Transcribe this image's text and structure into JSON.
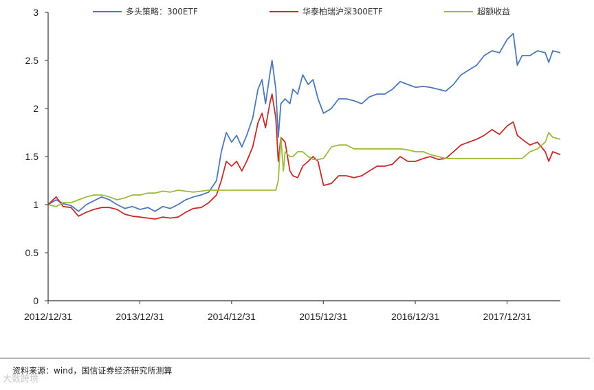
{
  "chart_data": {
    "type": "line",
    "title": "",
    "xlabel": "",
    "ylabel": "",
    "ylim": [
      0,
      3
    ],
    "yticks": [
      0,
      0.5,
      1,
      1.5,
      2,
      2.5,
      3
    ],
    "ytick_labels": [
      "0",
      "0.5",
      "1",
      "1.5",
      "2",
      "2.5",
      "3"
    ],
    "xlim": [
      "2012-12-31",
      "2018-07-31"
    ],
    "xticks": [
      "2012-12-31",
      "2013-12-31",
      "2014-12-31",
      "2015-12-31",
      "2016-12-31",
      "2017-12-31"
    ],
    "xtick_labels": [
      "2012/12/31",
      "2013/12/31",
      "2014/12/31",
      "2015/12/31",
      "2016/12/31",
      "2017/12/31"
    ],
    "grid": false,
    "legend_position": "top",
    "series": [
      {
        "name": "多头策略：300ETF",
        "color": "#4a78b8",
        "points": [
          [
            "2012-12-31",
            1.0
          ],
          [
            "2013-02-01",
            1.05
          ],
          [
            "2013-03-01",
            1.01
          ],
          [
            "2013-04-01",
            0.99
          ],
          [
            "2013-05-01",
            0.93
          ],
          [
            "2013-06-01",
            1.0
          ],
          [
            "2013-07-01",
            1.04
          ],
          [
            "2013-08-01",
            1.08
          ],
          [
            "2013-09-01",
            1.05
          ],
          [
            "2013-10-01",
            1.0
          ],
          [
            "2013-11-01",
            0.96
          ],
          [
            "2013-12-01",
            0.98
          ],
          [
            "2014-01-01",
            0.95
          ],
          [
            "2014-02-01",
            0.97
          ],
          [
            "2014-03-01",
            0.93
          ],
          [
            "2014-04-01",
            0.98
          ],
          [
            "2014-05-01",
            0.96
          ],
          [
            "2014-06-01",
            1.0
          ],
          [
            "2014-07-01",
            1.05
          ],
          [
            "2014-08-01",
            1.08
          ],
          [
            "2014-09-01",
            1.1
          ],
          [
            "2014-10-01",
            1.13
          ],
          [
            "2014-11-01",
            1.25
          ],
          [
            "2014-11-20",
            1.55
          ],
          [
            "2014-12-10",
            1.75
          ],
          [
            "2014-12-31",
            1.65
          ],
          [
            "2015-01-20",
            1.72
          ],
          [
            "2015-02-10",
            1.6
          ],
          [
            "2015-03-01",
            1.72
          ],
          [
            "2015-03-25",
            1.9
          ],
          [
            "2015-04-15",
            2.2
          ],
          [
            "2015-05-01",
            2.3
          ],
          [
            "2015-05-15",
            2.05
          ],
          [
            "2015-06-01",
            2.35
          ],
          [
            "2015-06-10",
            2.5
          ],
          [
            "2015-06-25",
            2.2
          ],
          [
            "2015-07-05",
            1.7
          ],
          [
            "2015-07-15",
            2.05
          ],
          [
            "2015-08-01",
            2.1
          ],
          [
            "2015-08-20",
            2.05
          ],
          [
            "2015-09-01",
            2.2
          ],
          [
            "2015-09-20",
            2.15
          ],
          [
            "2015-10-10",
            2.35
          ],
          [
            "2015-11-01",
            2.25
          ],
          [
            "2015-11-20",
            2.3
          ],
          [
            "2015-12-10",
            2.1
          ],
          [
            "2016-01-01",
            1.95
          ],
          [
            "2016-02-01",
            2.0
          ],
          [
            "2016-03-01",
            2.1
          ],
          [
            "2016-04-01",
            2.1
          ],
          [
            "2016-05-01",
            2.08
          ],
          [
            "2016-06-01",
            2.05
          ],
          [
            "2016-07-01",
            2.12
          ],
          [
            "2016-08-01",
            2.15
          ],
          [
            "2016-09-01",
            2.15
          ],
          [
            "2016-10-01",
            2.2
          ],
          [
            "2016-11-01",
            2.28
          ],
          [
            "2016-12-01",
            2.25
          ],
          [
            "2017-01-01",
            2.22
          ],
          [
            "2017-02-01",
            2.23
          ],
          [
            "2017-03-01",
            2.22
          ],
          [
            "2017-04-01",
            2.2
          ],
          [
            "2017-05-01",
            2.18
          ],
          [
            "2017-06-01",
            2.25
          ],
          [
            "2017-07-01",
            2.35
          ],
          [
            "2017-08-01",
            2.4
          ],
          [
            "2017-09-01",
            2.45
          ],
          [
            "2017-10-01",
            2.55
          ],
          [
            "2017-11-01",
            2.6
          ],
          [
            "2017-12-01",
            2.58
          ],
          [
            "2018-01-01",
            2.72
          ],
          [
            "2018-01-25",
            2.78
          ],
          [
            "2018-02-10",
            2.45
          ],
          [
            "2018-03-01",
            2.55
          ],
          [
            "2018-04-01",
            2.55
          ],
          [
            "2018-05-01",
            2.6
          ],
          [
            "2018-06-01",
            2.58
          ],
          [
            "2018-06-15",
            2.48
          ],
          [
            "2018-07-01",
            2.6
          ],
          [
            "2018-07-31",
            2.58
          ]
        ]
      },
      {
        "name": "华泰柏瑞沪深300ETF",
        "color": "#c62a2a",
        "points": [
          [
            "2012-12-31",
            1.0
          ],
          [
            "2013-02-01",
            1.08
          ],
          [
            "2013-03-01",
            0.98
          ],
          [
            "2013-04-01",
            0.97
          ],
          [
            "2013-05-01",
            0.88
          ],
          [
            "2013-06-01",
            0.92
          ],
          [
            "2013-07-01",
            0.95
          ],
          [
            "2013-08-01",
            0.97
          ],
          [
            "2013-09-01",
            0.97
          ],
          [
            "2013-10-01",
            0.95
          ],
          [
            "2013-11-01",
            0.9
          ],
          [
            "2013-12-01",
            0.88
          ],
          [
            "2014-01-01",
            0.87
          ],
          [
            "2014-02-01",
            0.86
          ],
          [
            "2014-03-01",
            0.85
          ],
          [
            "2014-04-01",
            0.87
          ],
          [
            "2014-05-01",
            0.86
          ],
          [
            "2014-06-01",
            0.87
          ],
          [
            "2014-07-01",
            0.92
          ],
          [
            "2014-08-01",
            0.96
          ],
          [
            "2014-09-01",
            0.97
          ],
          [
            "2014-10-01",
            1.02
          ],
          [
            "2014-11-01",
            1.1
          ],
          [
            "2014-11-20",
            1.25
          ],
          [
            "2014-12-10",
            1.45
          ],
          [
            "2014-12-31",
            1.4
          ],
          [
            "2015-01-20",
            1.45
          ],
          [
            "2015-02-10",
            1.35
          ],
          [
            "2015-03-01",
            1.45
          ],
          [
            "2015-03-25",
            1.6
          ],
          [
            "2015-04-15",
            1.85
          ],
          [
            "2015-05-01",
            1.95
          ],
          [
            "2015-05-15",
            1.8
          ],
          [
            "2015-06-01",
            2.05
          ],
          [
            "2015-06-10",
            2.15
          ],
          [
            "2015-06-25",
            1.9
          ],
          [
            "2015-07-05",
            1.45
          ],
          [
            "2015-07-15",
            1.7
          ],
          [
            "2015-08-01",
            1.65
          ],
          [
            "2015-08-20",
            1.35
          ],
          [
            "2015-09-01",
            1.3
          ],
          [
            "2015-09-20",
            1.28
          ],
          [
            "2015-10-10",
            1.4
          ],
          [
            "2015-11-01",
            1.45
          ],
          [
            "2015-11-20",
            1.5
          ],
          [
            "2015-12-10",
            1.45
          ],
          [
            "2016-01-01",
            1.2
          ],
          [
            "2016-02-01",
            1.22
          ],
          [
            "2016-03-01",
            1.3
          ],
          [
            "2016-04-01",
            1.3
          ],
          [
            "2016-05-01",
            1.28
          ],
          [
            "2016-06-01",
            1.3
          ],
          [
            "2016-07-01",
            1.35
          ],
          [
            "2016-08-01",
            1.4
          ],
          [
            "2016-09-01",
            1.4
          ],
          [
            "2016-10-01",
            1.42
          ],
          [
            "2016-11-01",
            1.5
          ],
          [
            "2016-12-01",
            1.45
          ],
          [
            "2017-01-01",
            1.45
          ],
          [
            "2017-02-01",
            1.48
          ],
          [
            "2017-03-01",
            1.5
          ],
          [
            "2017-04-01",
            1.47
          ],
          [
            "2017-05-01",
            1.48
          ],
          [
            "2017-06-01",
            1.55
          ],
          [
            "2017-07-01",
            1.62
          ],
          [
            "2017-08-01",
            1.65
          ],
          [
            "2017-09-01",
            1.68
          ],
          [
            "2017-10-01",
            1.72
          ],
          [
            "2017-11-01",
            1.78
          ],
          [
            "2017-12-01",
            1.73
          ],
          [
            "2018-01-01",
            1.82
          ],
          [
            "2018-01-25",
            1.86
          ],
          [
            "2018-02-10",
            1.72
          ],
          [
            "2018-03-01",
            1.68
          ],
          [
            "2018-04-01",
            1.62
          ],
          [
            "2018-05-01",
            1.65
          ],
          [
            "2018-06-01",
            1.55
          ],
          [
            "2018-06-15",
            1.45
          ],
          [
            "2018-07-01",
            1.55
          ],
          [
            "2018-07-31",
            1.52
          ]
        ]
      },
      {
        "name": "超额收益",
        "color": "#9cba3a",
        "points": [
          [
            "2012-12-31",
            1.0
          ],
          [
            "2013-02-01",
            0.98
          ],
          [
            "2013-03-01",
            1.02
          ],
          [
            "2013-04-01",
            1.02
          ],
          [
            "2013-05-01",
            1.05
          ],
          [
            "2013-06-01",
            1.08
          ],
          [
            "2013-07-01",
            1.1
          ],
          [
            "2013-08-01",
            1.1
          ],
          [
            "2013-09-01",
            1.08
          ],
          [
            "2013-10-01",
            1.05
          ],
          [
            "2013-11-01",
            1.07
          ],
          [
            "2013-12-01",
            1.1
          ],
          [
            "2014-01-01",
            1.1
          ],
          [
            "2014-02-01",
            1.12
          ],
          [
            "2014-03-01",
            1.12
          ],
          [
            "2014-04-01",
            1.14
          ],
          [
            "2014-05-01",
            1.13
          ],
          [
            "2014-06-01",
            1.15
          ],
          [
            "2014-07-01",
            1.14
          ],
          [
            "2014-08-01",
            1.13
          ],
          [
            "2014-09-01",
            1.14
          ],
          [
            "2014-10-01",
            1.15
          ],
          [
            "2014-11-01",
            1.15
          ],
          [
            "2014-11-20",
            1.15
          ],
          [
            "2014-12-10",
            1.15
          ],
          [
            "2014-12-31",
            1.15
          ],
          [
            "2015-01-20",
            1.15
          ],
          [
            "2015-02-10",
            1.15
          ],
          [
            "2015-03-01",
            1.15
          ],
          [
            "2015-03-25",
            1.15
          ],
          [
            "2015-04-15",
            1.15
          ],
          [
            "2015-05-01",
            1.15
          ],
          [
            "2015-05-15",
            1.15
          ],
          [
            "2015-06-01",
            1.15
          ],
          [
            "2015-06-10",
            1.15
          ],
          [
            "2015-06-25",
            1.15
          ],
          [
            "2015-07-05",
            1.25
          ],
          [
            "2015-07-15",
            1.7
          ],
          [
            "2015-07-25",
            1.35
          ],
          [
            "2015-08-01",
            1.55
          ],
          [
            "2015-08-20",
            1.5
          ],
          [
            "2015-09-01",
            1.5
          ],
          [
            "2015-09-20",
            1.55
          ],
          [
            "2015-10-10",
            1.55
          ],
          [
            "2015-11-01",
            1.5
          ],
          [
            "2015-11-20",
            1.47
          ],
          [
            "2015-12-10",
            1.47
          ],
          [
            "2016-01-01",
            1.48
          ],
          [
            "2016-02-01",
            1.6
          ],
          [
            "2016-03-01",
            1.62
          ],
          [
            "2016-04-01",
            1.62
          ],
          [
            "2016-05-01",
            1.58
          ],
          [
            "2016-06-01",
            1.58
          ],
          [
            "2016-07-01",
            1.58
          ],
          [
            "2016-08-01",
            1.58
          ],
          [
            "2016-09-01",
            1.58
          ],
          [
            "2016-10-01",
            1.58
          ],
          [
            "2016-11-01",
            1.58
          ],
          [
            "2016-12-01",
            1.57
          ],
          [
            "2017-01-01",
            1.55
          ],
          [
            "2017-02-01",
            1.55
          ],
          [
            "2017-03-01",
            1.52
          ],
          [
            "2017-04-01",
            1.5
          ],
          [
            "2017-05-01",
            1.48
          ],
          [
            "2017-06-01",
            1.48
          ],
          [
            "2017-07-01",
            1.48
          ],
          [
            "2017-08-01",
            1.48
          ],
          [
            "2017-09-01",
            1.48
          ],
          [
            "2017-10-01",
            1.48
          ],
          [
            "2017-11-01",
            1.48
          ],
          [
            "2017-12-01",
            1.48
          ],
          [
            "2018-01-01",
            1.48
          ],
          [
            "2018-01-25",
            1.48
          ],
          [
            "2018-02-10",
            1.48
          ],
          [
            "2018-03-01",
            1.48
          ],
          [
            "2018-04-01",
            1.55
          ],
          [
            "2018-05-01",
            1.58
          ],
          [
            "2018-06-01",
            1.65
          ],
          [
            "2018-06-15",
            1.75
          ],
          [
            "2018-07-01",
            1.7
          ],
          [
            "2018-07-31",
            1.68
          ]
        ]
      }
    ]
  },
  "source_note": "资料来源：wind，国信证券经济研究所测算",
  "watermark": "大数跨境"
}
